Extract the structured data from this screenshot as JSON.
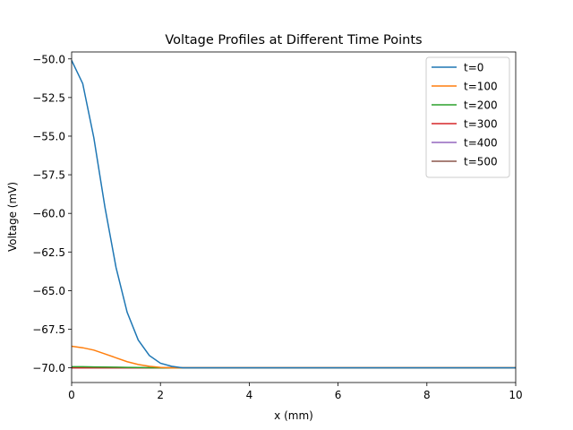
{
  "chart_data": {
    "type": "line",
    "title": "Voltage Profiles at Different Time Points",
    "xlabel": "x (mm)",
    "ylabel": "Voltage (mV)",
    "xlim": [
      0,
      10
    ],
    "ylim": [
      -70.95,
      -49.55
    ],
    "x_ticks": [
      0,
      2,
      4,
      6,
      8,
      10
    ],
    "x_tick_labels": [
      "0",
      "2",
      "4",
      "6",
      "8",
      "10"
    ],
    "y_ticks": [
      -50.0,
      -52.5,
      -55.0,
      -57.5,
      -60.0,
      -62.5,
      -65.0,
      -67.5,
      -70.0
    ],
    "y_tick_labels": [
      "−50.0",
      "−52.5",
      "−55.0",
      "−57.5",
      "−60.0",
      "−62.5",
      "−65.0",
      "−67.5",
      "−70.0"
    ],
    "grid": false,
    "legend_position": "top-right",
    "x": [
      0,
      0.25,
      0.5,
      0.75,
      1.0,
      1.25,
      1.5,
      1.75,
      2.0,
      2.25,
      2.5,
      2.75,
      3.0,
      4.0,
      5.0,
      6.0,
      7.0,
      8.0,
      9.0,
      10.0
    ],
    "series": [
      {
        "name": "t=0",
        "color": "#1f77b4",
        "values": [
          -50.1,
          -51.6,
          -55.1,
          -59.6,
          -63.5,
          -66.4,
          -68.2,
          -69.2,
          -69.7,
          -69.9,
          -70.0,
          -70.0,
          -70.0,
          -70.0,
          -70.0,
          -70.0,
          -70.0,
          -70.0,
          -70.0,
          -70.0
        ]
      },
      {
        "name": "t=100",
        "color": "#ff7f0e",
        "values": [
          -68.6,
          -68.7,
          -68.85,
          -69.1,
          -69.35,
          -69.6,
          -69.78,
          -69.9,
          -69.97,
          -70.0,
          -70.0,
          -70.0,
          -70.0,
          -70.0,
          -70.0,
          -70.0,
          -70.0,
          -70.0,
          -70.0,
          -70.0
        ]
      },
      {
        "name": "t=200",
        "color": "#2ca02c",
        "values": [
          -69.93,
          -69.93,
          -69.94,
          -69.95,
          -69.96,
          -69.97,
          -69.98,
          -69.99,
          -70.0,
          -70.0,
          -70.0,
          -70.0,
          -70.0,
          -70.0,
          -70.0,
          -70.0,
          -70.0,
          -70.0,
          -70.0,
          -70.0
        ]
      },
      {
        "name": "t=300",
        "color": "#d62728",
        "values": [
          -70.0,
          -70.0,
          -70.0,
          -70.0,
          -70.0,
          -70.0,
          -70.0,
          -70.0,
          -70.0,
          -70.0,
          -70.0,
          -70.0,
          -70.0,
          -70.0,
          -70.0,
          -70.0,
          -70.0,
          -70.0,
          -70.0,
          -70.0
        ]
      },
      {
        "name": "t=400",
        "color": "#9467bd",
        "values": [
          -70.0,
          -70.0,
          -70.0,
          -70.0,
          -70.0,
          -70.0,
          -70.0,
          -70.0,
          -70.0,
          -70.0,
          -70.0,
          -70.0,
          -70.0,
          -70.0,
          -70.0,
          -70.0,
          -70.0,
          -70.0,
          -70.0,
          -70.0
        ]
      },
      {
        "name": "t=500",
        "color": "#8c564b",
        "values": [
          -70.0,
          -70.0,
          -70.0,
          -70.0,
          -70.0,
          -70.0,
          -70.0,
          -70.0,
          -70.0,
          -70.0,
          -70.0,
          -70.0,
          -70.0,
          -70.0,
          -70.0,
          -70.0,
          -70.0,
          -70.0,
          -70.0,
          -70.0
        ]
      }
    ]
  }
}
